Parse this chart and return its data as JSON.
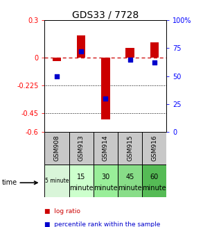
{
  "title": "GDS33 / 7728",
  "samples": [
    "GSM908",
    "GSM913",
    "GSM914",
    "GSM915",
    "GSM916"
  ],
  "time_labels_row1": [
    "5 minute",
    "15",
    "30",
    "45",
    "60"
  ],
  "time_labels_row2": [
    "",
    "minute",
    "minute",
    "minute",
    "minute"
  ],
  "time_colors": [
    "#d9f5d9",
    "#ccffcc",
    "#99ee99",
    "#88dd88",
    "#55bb55"
  ],
  "log_ratio": [
    -0.03,
    0.18,
    -0.5,
    0.08,
    0.12
  ],
  "percentile_rank": [
    50,
    72,
    30,
    65,
    62
  ],
  "ylim_left": [
    -0.6,
    0.3
  ],
  "ylim_right": [
    0,
    100
  ],
  "yticks_left": [
    0.3,
    0.0,
    -0.225,
    -0.45,
    -0.6
  ],
  "ytick_labels_left": [
    "0.3",
    "0",
    "-0.225",
    "-0.45",
    "-0.6"
  ],
  "yticks_right": [
    100,
    75,
    50,
    25,
    0
  ],
  "ytick_labels_right": [
    "100%",
    "75",
    "50",
    "25",
    "0"
  ],
  "hline_y": 0,
  "dotted_lines": [
    -0.225,
    -0.45
  ],
  "bar_color": "#cc0000",
  "square_color": "#0000cc",
  "dashed_line_color": "#cc0000",
  "legend_log_ratio": "log ratio",
  "legend_percentile": "percentile rank within the sample",
  "bar_width": 0.35,
  "sample_bg": "#c8c8c8",
  "gsm_fontsize": 6.5,
  "time_fontsize": 7.0,
  "legend_fontsize": 6.5,
  "title_fontsize": 10
}
